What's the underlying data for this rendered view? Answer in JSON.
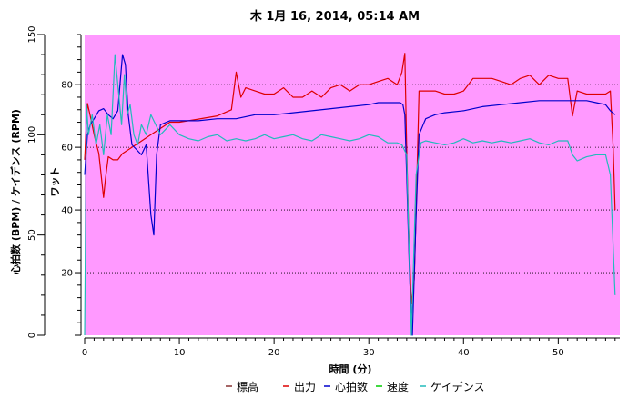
{
  "chart_data": {
    "type": "line",
    "title": "木 1月 16, 2014, 05:14 AM",
    "xlabel": "時間 (分)",
    "ylabel_left": "心拍数 (BPM) / ケイデンス (RPM)",
    "ylabel_right": "ワット",
    "xlim": [
      0,
      56.5
    ],
    "ylim_left": [
      0,
      150
    ],
    "ylim_right": [
      0,
      96
    ],
    "x_ticks": [
      0,
      10,
      20,
      30,
      40,
      50
    ],
    "y_ticks_left": [
      0,
      50,
      100,
      150
    ],
    "y_ticks_right": [
      20,
      40,
      60,
      80
    ],
    "grid": "horizontal-dotted",
    "legend_position": "bottom",
    "colors": {
      "plot_background": "#ff99ff",
      "power": "#dd0000",
      "heart_rate": "#0000cc",
      "speed": "#00cc00",
      "cadence": "#22bbbb",
      "elevation": "#883333"
    },
    "legend": [
      {
        "key": "elevation",
        "label": "標高",
        "color": "#883333"
      },
      {
        "key": "power",
        "label": "出力",
        "color": "#dd0000"
      },
      {
        "key": "heart_rate",
        "label": "心拍数",
        "color": "#0000cc"
      },
      {
        "key": "speed",
        "label": "速度",
        "color": "#00cc00"
      },
      {
        "key": "cadence",
        "label": "ケイデンス",
        "color": "#22bbbb"
      }
    ],
    "series": [
      {
        "name": "出力",
        "axis": "right",
        "color": "#dd0000",
        "x": [
          0,
          0.3,
          0.6,
          1,
          1.5,
          2,
          2.2,
          2.5,
          3,
          3.5,
          4,
          5,
          6,
          7,
          8,
          9,
          10,
          12,
          14,
          15.5,
          16,
          16.5,
          17,
          18,
          19,
          20,
          21,
          22,
          23,
          24,
          25,
          26,
          27,
          28,
          29,
          30,
          31,
          32,
          33,
          33.5,
          33.8,
          34,
          34.2,
          34.5,
          34.8,
          35,
          35.3,
          36,
          37,
          38,
          39,
          40,
          41,
          42,
          43,
          44,
          45,
          46,
          47,
          48,
          49,
          50,
          51,
          51.5,
          52,
          53,
          54,
          55,
          55.5,
          55.8,
          56
        ],
        "y": [
          56,
          74,
          70,
          64,
          58,
          44,
          50,
          57,
          56,
          56,
          58,
          60,
          62,
          64,
          66,
          68,
          68,
          69,
          70,
          72,
          84,
          76,
          79,
          78,
          77,
          77,
          79,
          76,
          76,
          78,
          76,
          79,
          80,
          78,
          80,
          80,
          81,
          82,
          80,
          84,
          90,
          60,
          35,
          10,
          18,
          40,
          78,
          78,
          78,
          77,
          77,
          78,
          82,
          82,
          82,
          81,
          80,
          82,
          83,
          80,
          83,
          82,
          82,
          70,
          78,
          77,
          77,
          77,
          78,
          60,
          40
        ]
      },
      {
        "name": "心拍数",
        "axis": "left",
        "color": "#0000cc",
        "x": [
          0,
          0.3,
          0.6,
          1,
          1.5,
          2,
          2.5,
          3,
          3.5,
          4,
          4.3,
          4.6,
          5,
          6,
          6.5,
          7,
          7.3,
          7.6,
          8,
          9,
          10,
          12,
          14,
          16,
          18,
          20,
          22,
          24,
          26,
          28,
          30,
          31,
          32,
          33,
          33.3,
          33.6,
          33.8,
          34,
          34.3,
          34.6,
          35,
          35.3,
          36,
          37,
          38,
          40,
          42,
          44,
          46,
          48,
          50,
          51,
          52,
          53,
          54,
          55,
          55.5,
          56
        ],
        "y": [
          80,
          100,
          105,
          108,
          112,
          113,
          110,
          108,
          112,
          140,
          135,
          110,
          95,
          90,
          95,
          60,
          50,
          90,
          105,
          107,
          107,
          107,
          108,
          108,
          110,
          110,
          111,
          112,
          113,
          114,
          115,
          116,
          116,
          116,
          116,
          115,
          110,
          80,
          30,
          0,
          60,
          100,
          108,
          110,
          111,
          112,
          114,
          115,
          116,
          117,
          117,
          117,
          117,
          117,
          116,
          115,
          112,
          110
        ]
      },
      {
        "name": "ケイデンス",
        "axis": "left",
        "color": "#22bbbb",
        "x": [
          0,
          0.2,
          0.4,
          0.8,
          1.2,
          1.6,
          2,
          2.4,
          2.8,
          3.2,
          3.6,
          3.9,
          4.2,
          4.5,
          4.8,
          5.2,
          5.6,
          6,
          6.5,
          7,
          7.5,
          8,
          9,
          10,
          11,
          12,
          13,
          14,
          15,
          16,
          17,
          18,
          19,
          20,
          21,
          22,
          23,
          24,
          25,
          26,
          27,
          28,
          29,
          30,
          31,
          32,
          33,
          33.5,
          34,
          34.5,
          35,
          35.5,
          36,
          37,
          38,
          39,
          40,
          41,
          42,
          43,
          44,
          45,
          46,
          47,
          48,
          49,
          50,
          51,
          51.5,
          52,
          53,
          54,
          55,
          55.5,
          56
        ],
        "y": [
          0,
          115,
          100,
          110,
          95,
          105,
          90,
          110,
          100,
          140,
          120,
          105,
          130,
          110,
          115,
          100,
          95,
          105,
          100,
          110,
          105,
          100,
          105,
          100,
          98,
          97,
          99,
          100,
          97,
          98,
          97,
          98,
          100,
          98,
          99,
          100,
          98,
          97,
          100,
          99,
          98,
          97,
          98,
          100,
          99,
          96,
          96,
          95,
          90,
          0,
          80,
          96,
          97,
          96,
          95,
          96,
          98,
          96,
          97,
          96,
          97,
          96,
          97,
          98,
          96,
          95,
          97,
          97,
          90,
          87,
          89,
          90,
          90,
          80,
          20
        ]
      }
    ]
  }
}
